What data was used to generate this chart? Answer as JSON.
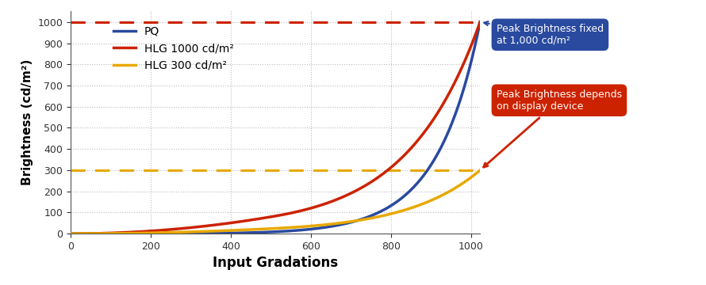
{
  "xlabel": "Input Gradations",
  "ylabel": "Brightness (cd/m²)",
  "xlim": [
    0,
    1023
  ],
  "ylim": [
    0,
    1050
  ],
  "yticks": [
    0,
    100,
    200,
    300,
    400,
    500,
    600,
    700,
    800,
    900,
    1000
  ],
  "xticks": [
    0,
    200,
    400,
    600,
    800,
    1000
  ],
  "pq_color": "#2a4a9f",
  "hlg1000_color": "#cc2200",
  "hlg300_color": "#e8a800",
  "dashed_1000_color": "#cc2200",
  "dashed_300_color": "#e8a800",
  "legend_pq": "PQ",
  "legend_hlg1000": "HLG 1000 cd/m²",
  "legend_hlg300": "HLG 300 cd/m²",
  "annotation_pq_text": "Peak Brightness fixed\nat 1,000 cd/m²",
  "annotation_hlg_text": "Peak Brightness depends\non display device",
  "annotation_pq_color": "#2a4a9f",
  "annotation_hlg_color": "#cc2200",
  "background_color": "#ffffff",
  "grid_color": "#bbbbbb"
}
